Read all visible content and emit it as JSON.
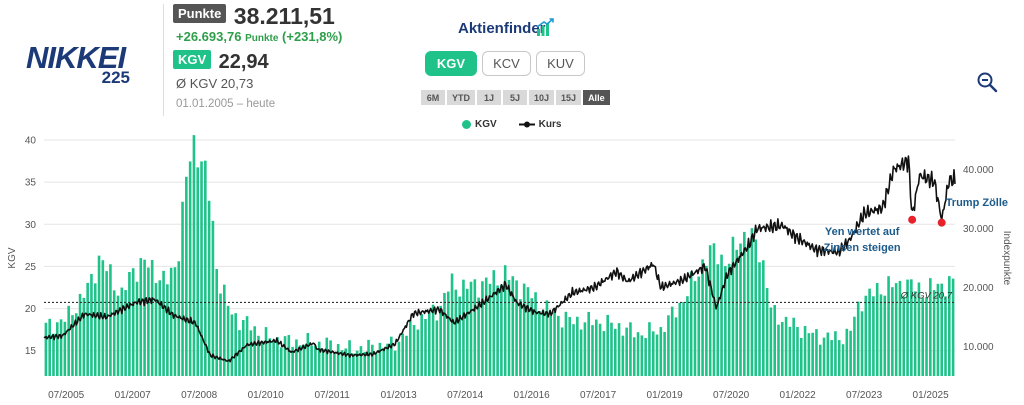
{
  "header": {
    "logo_text": "NIKKEI",
    "logo_sub": "225",
    "price_label": "Punkte",
    "price_value": "38.211,51",
    "change_value": "+26.693,76",
    "change_unit": "Punkte",
    "change_pct": "(+231,8%)",
    "kgv_label": "KGV",
    "kgv_value": "22,94",
    "avg_kgv": "Ø KGV 20,73",
    "period": "01.01.2005 – heute",
    "brand": "Aktienfinder"
  },
  "toggles": [
    {
      "label": "KGV",
      "active": true
    },
    {
      "label": "KCV",
      "active": false
    },
    {
      "label": "KUV",
      "active": false
    }
  ],
  "ranges": [
    {
      "label": "6M",
      "active": false
    },
    {
      "label": "YTD",
      "active": false
    },
    {
      "label": "1J",
      "active": false
    },
    {
      "label": "5J",
      "active": false
    },
    {
      "label": "10J",
      "active": false
    },
    {
      "label": "15J",
      "active": false
    },
    {
      "label": "Alle",
      "active": true
    }
  ],
  "icons": {
    "zoom": "zoom-out-icon",
    "brand": "bar-chart-icon"
  },
  "colors": {
    "kgv_bar": "#1fc38a",
    "kurs_line": "#111111",
    "marker": "#e8202a",
    "annotation": "#1c5a8a",
    "avg_line": "#333333"
  },
  "chart_data": {
    "type": "bar+line",
    "legend": [
      "KGV",
      "Kurs"
    ],
    "legend_position": "top-center",
    "grid": true,
    "ylabel_left": "KGV",
    "ylabel_right": "Indexpunkte",
    "ylim_left": [
      12,
      40
    ],
    "ylim_right": [
      5000,
      45000
    ],
    "yticks_left": [
      "15",
      "20",
      "25",
      "30",
      "35",
      "40"
    ],
    "yticks_right": [
      {
        "label": "10.000",
        "value": 10000
      },
      {
        "label": "20.000",
        "value": 20000
      },
      {
        "label": "30.000",
        "value": 30000
      },
      {
        "label": "40.000",
        "value": 40000
      }
    ],
    "xticks": [
      {
        "label": "07/2005",
        "date": "2005-07"
      },
      {
        "label": "01/2007",
        "date": "2007-01"
      },
      {
        "label": "07/2008",
        "date": "2008-07"
      },
      {
        "label": "01/2010",
        "date": "2010-01"
      },
      {
        "label": "07/2011",
        "date": "2011-07"
      },
      {
        "label": "01/2013",
        "date": "2013-01"
      },
      {
        "label": "07/2014",
        "date": "2014-07"
      },
      {
        "label": "01/2016",
        "date": "2016-01"
      },
      {
        "label": "07/2017",
        "date": "2017-07"
      },
      {
        "label": "01/2019",
        "date": "2019-01"
      },
      {
        "label": "07/2020",
        "date": "2020-07"
      },
      {
        "label": "01/2022",
        "date": "2022-01"
      },
      {
        "label": "07/2023",
        "date": "2023-07"
      },
      {
        "label": "01/2025",
        "date": "2025-01"
      }
    ],
    "average_kgv": {
      "value": 20.73,
      "label": "Ø KGV 20,7"
    },
    "kgv_series": {
      "name": "KGV",
      "points": [
        [
          "2005-01",
          17.8
        ],
        [
          "2005-04",
          18.2
        ],
        [
          "2005-07",
          18.8
        ],
        [
          "2005-10",
          20.5
        ],
        [
          "2006-01",
          22.5
        ],
        [
          "2006-04",
          26.0
        ],
        [
          "2006-07",
          24.0
        ],
        [
          "2006-10",
          21.5
        ],
        [
          "2007-01",
          24.5
        ],
        [
          "2007-04",
          25.5
        ],
        [
          "2007-07",
          24.5
        ],
        [
          "2007-10",
          23.0
        ],
        [
          "2008-01",
          25.5
        ],
        [
          "2008-04",
          37.0
        ],
        [
          "2008-06",
          40.0
        ],
        [
          "2008-08",
          37.0
        ],
        [
          "2008-10",
          33.0
        ],
        [
          "2008-12",
          24.0
        ],
        [
          "2009-03",
          20.0
        ],
        [
          "2009-06",
          18.5
        ],
        [
          "2009-09",
          18.0
        ],
        [
          "2009-12",
          16.8
        ],
        [
          "2010-06",
          16.2
        ],
        [
          "2010-12",
          16.0
        ],
        [
          "2011-06",
          15.8
        ],
        [
          "2011-12",
          15.2
        ],
        [
          "2012-06",
          15.5
        ],
        [
          "2012-12",
          15.8
        ],
        [
          "2013-06",
          18.5
        ],
        [
          "2013-12",
          20.0
        ],
        [
          "2014-03",
          23.0
        ],
        [
          "2014-06",
          22.5
        ],
        [
          "2014-12",
          23.0
        ],
        [
          "2015-06",
          24.0
        ],
        [
          "2015-12",
          22.0
        ],
        [
          "2016-06",
          19.5
        ],
        [
          "2016-12",
          18.5
        ],
        [
          "2017-06",
          18.5
        ],
        [
          "2017-12",
          18.0
        ],
        [
          "2018-06",
          17.0
        ],
        [
          "2018-12",
          17.5
        ],
        [
          "2019-06",
          21.0
        ],
        [
          "2019-12",
          26.0
        ],
        [
          "2020-03",
          27.0
        ],
        [
          "2020-06",
          25.0
        ],
        [
          "2020-09",
          28.5
        ],
        [
          "2020-12",
          28.5
        ],
        [
          "2021-03",
          27.0
        ],
        [
          "2021-06",
          19.5
        ],
        [
          "2021-12",
          18.0
        ],
        [
          "2022-06",
          16.8
        ],
        [
          "2022-12",
          16.5
        ],
        [
          "2023-03",
          17.0
        ],
        [
          "2023-06",
          21.0
        ],
        [
          "2023-12",
          22.5
        ],
        [
          "2024-06",
          23.0
        ],
        [
          "2024-12",
          22.0
        ],
        [
          "2025-03",
          22.8
        ],
        [
          "2025-06",
          22.9
        ]
      ]
    },
    "kurs_series": {
      "name": "Kurs",
      "points": [
        [
          "2005-01",
          11500
        ],
        [
          "2005-06",
          11800
        ],
        [
          "2005-12",
          15500
        ],
        [
          "2006-06",
          15000
        ],
        [
          "2007-02",
          17500
        ],
        [
          "2007-07",
          18000
        ],
        [
          "2007-12",
          15300
        ],
        [
          "2008-06",
          14000
        ],
        [
          "2008-10",
          8500
        ],
        [
          "2009-03",
          7500
        ],
        [
          "2009-08",
          10300
        ],
        [
          "2010-04",
          11000
        ],
        [
          "2010-08",
          9000
        ],
        [
          "2011-02",
          10600
        ],
        [
          "2011-03",
          9500
        ],
        [
          "2011-12",
          8500
        ],
        [
          "2012-06",
          8700
        ],
        [
          "2012-12",
          10400
        ],
        [
          "2013-05",
          15600
        ],
        [
          "2013-12",
          16300
        ],
        [
          "2014-04",
          14000
        ],
        [
          "2014-12",
          17500
        ],
        [
          "2015-06",
          20500
        ],
        [
          "2015-09",
          17400
        ],
        [
          "2016-02",
          15800
        ],
        [
          "2016-06",
          15500
        ],
        [
          "2016-12",
          19100
        ],
        [
          "2017-06",
          20000
        ],
        [
          "2017-12",
          22700
        ],
        [
          "2018-03",
          21000
        ],
        [
          "2018-10",
          24000
        ],
        [
          "2018-12",
          20000
        ],
        [
          "2019-06",
          21300
        ],
        [
          "2019-12",
          23600
        ],
        [
          "2020-03",
          16500
        ],
        [
          "2020-06",
          22300
        ],
        [
          "2020-12",
          27400
        ],
        [
          "2021-02",
          30000
        ],
        [
          "2021-09",
          30500
        ],
        [
          "2021-12",
          28800
        ],
        [
          "2022-06",
          26400
        ],
        [
          "2022-12",
          26000
        ],
        [
          "2023-03",
          28000
        ],
        [
          "2023-07",
          32500
        ],
        [
          "2023-12",
          33500
        ],
        [
          "2024-03",
          40000
        ],
        [
          "2024-07",
          41500
        ],
        [
          "2024-08",
          32000
        ],
        [
          "2024-10",
          39000
        ],
        [
          "2025-02",
          38000
        ],
        [
          "2025-04",
          31500
        ],
        [
          "2025-06",
          38200
        ]
      ]
    },
    "event_markers": [
      {
        "date": "2024-08",
        "value": 32000
      },
      {
        "date": "2025-04",
        "value": 31500
      }
    ],
    "annotations": [
      {
        "text": "Yen wertet auf",
        "near": "2024-08"
      },
      {
        "text": "Zinsen steigen",
        "near": "2024-08"
      },
      {
        "text": "Trump Zölle",
        "near": "2025-04"
      }
    ]
  }
}
